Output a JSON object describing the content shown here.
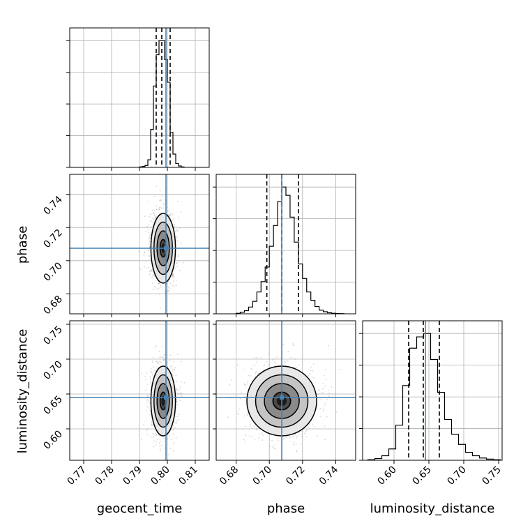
{
  "chart_data": {
    "type": "corner",
    "parameters": [
      "geocent_time",
      "phase",
      "luminosity_distance"
    ],
    "truth_color": "#4682b4",
    "grid": true,
    "ranges": {
      "geocent_time": [
        0.765,
        0.815
      ],
      "phase": [
        0.668,
        0.752
      ],
      "luminosity_distance": [
        0.555,
        0.755
      ]
    },
    "ticks": {
      "geocent_time": [
        "0.77",
        "0.78",
        "0.79",
        "0.80",
        "0.81"
      ],
      "phase": [
        "0.68",
        "0.70",
        "0.72",
        "0.74"
      ],
      "luminosity_distance": [
        "0.60",
        "0.65",
        "0.70",
        "0.75"
      ]
    },
    "truths": {
      "geocent_time": 0.7995,
      "phase": 0.7075,
      "luminosity_distance": 0.645
    },
    "quantiles": {
      "geocent_time": [
        0.796,
        0.798,
        0.801
      ],
      "phase": [
        0.6985,
        0.7075,
        0.7175
      ],
      "luminosity_distance": [
        0.621,
        0.642,
        0.665
      ]
    },
    "histograms": {
      "geocent_time": {
        "edges": [
          0.79,
          0.791,
          0.792,
          0.793,
          0.794,
          0.795,
          0.796,
          0.797,
          0.798,
          0.799,
          0.8,
          0.801,
          0.802,
          0.803,
          0.804,
          0.805,
          0.806
        ],
        "counts": [
          0.5,
          1.0,
          2.0,
          8.0,
          40.0,
          86.0,
          119.0,
          134.0,
          134.0,
          114.0,
          90.0,
          37.0,
          14.0,
          4.0,
          1.5,
          0.5
        ]
      },
      "phase": {
        "edges": [
          0.68,
          0.6825,
          0.685,
          0.6875,
          0.69,
          0.6925,
          0.695,
          0.6975,
          0.7,
          0.7025,
          0.705,
          0.7075,
          0.71,
          0.7125,
          0.715,
          0.7175,
          0.72,
          0.7225,
          0.725,
          0.7275,
          0.73,
          0.7325,
          0.735,
          0.7375,
          0.74,
          0.7425,
          0.745
        ],
        "counts": [
          0.5,
          1.5,
          3.0,
          6.5,
          12.0,
          21.0,
          31.0,
          45.0,
          65.0,
          85.0,
          108.0,
          122.0,
          114.0,
          93.0,
          69.0,
          48.0,
          34.0,
          21.0,
          13.0,
          7.0,
          3.5,
          2.0,
          1.0,
          0.5,
          0.3,
          0.2
        ]
      },
      "luminosity_distance": {
        "edges": [
          0.5625,
          0.5725,
          0.5825,
          0.5925,
          0.6025,
          0.6125,
          0.6225,
          0.6325,
          0.6425,
          0.6525,
          0.6625,
          0.6725,
          0.6825,
          0.6925,
          0.7025,
          0.7125,
          0.7225,
          0.7325,
          0.7425,
          0.7525
        ],
        "counts": [
          0.5,
          1.5,
          4.0,
          10.0,
          31.0,
          66.0,
          99.0,
          109.0,
          112.0,
          89.0,
          60.0,
          36.0,
          23.0,
          14.0,
          7.0,
          4.0,
          2.0,
          1.0,
          0.5
        ]
      }
    },
    "posterior_2d": {
      "phase_vs_geocent_time": {
        "mean": [
          0.7985,
          0.7075
        ],
        "sd": [
          0.0022,
          0.0105
        ],
        "contours_sigma": [
          0.5,
          1.0,
          1.5,
          2.0
        ]
      },
      "luminosity_distance_vs_geocent_time": {
        "mean": [
          0.7985,
          0.64
        ],
        "sd": [
          0.0022,
          0.025
        ],
        "contours_sigma": [
          0.5,
          1.0,
          1.5,
          2.0
        ]
      },
      "luminosity_distance_vs_phase": {
        "mean": [
          0.7075,
          0.64
        ],
        "sd": [
          0.0105,
          0.025
        ],
        "contours_sigma": [
          0.5,
          1.0,
          1.5,
          2.0
        ]
      }
    }
  }
}
